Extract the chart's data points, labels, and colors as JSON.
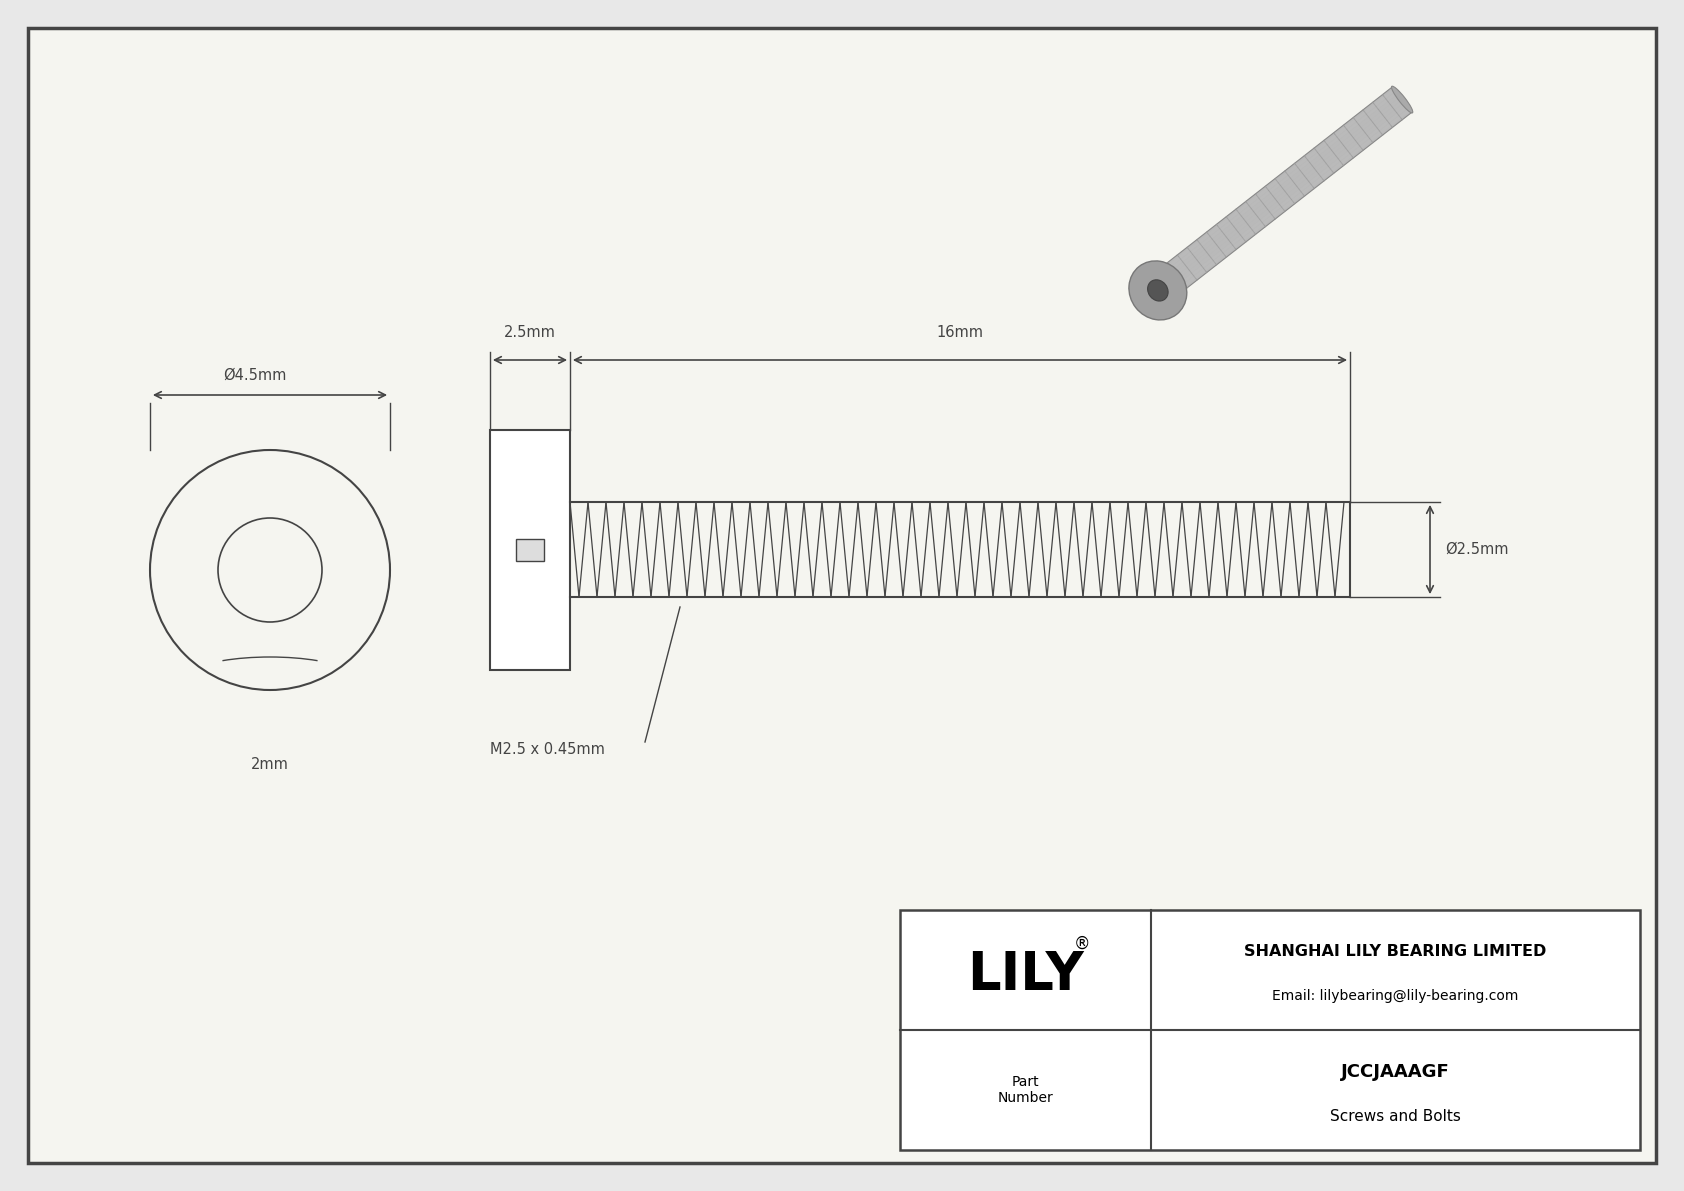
{
  "bg_color": "#e8e8e8",
  "inner_bg": "#f5f5f0",
  "border_color": "#444444",
  "line_color": "#444444",
  "title_company": "SHANGHAI LILY BEARING LIMITED",
  "title_email": "Email: lilybearing@lily-bearing.com",
  "part_number": "JCCJAAAGF",
  "part_category": "Screws and Bolts",
  "logo_text": "LILY",
  "dim_head_diameter": "Ø4.5mm",
  "dim_head_height": "2mm",
  "dim_thread_length": "16mm",
  "dim_head_length": "2.5mm",
  "dim_thread_diameter": "Ø2.5mm",
  "dim_thread_label": "M2.5 x 0.45mm",
  "font_size_dim": 10.5,
  "font_size_logo": 38,
  "font_size_company": 11.5,
  "font_size_email": 10,
  "font_size_part_label": 10,
  "font_size_part_number": 13,
  "font_size_part_cat": 11
}
